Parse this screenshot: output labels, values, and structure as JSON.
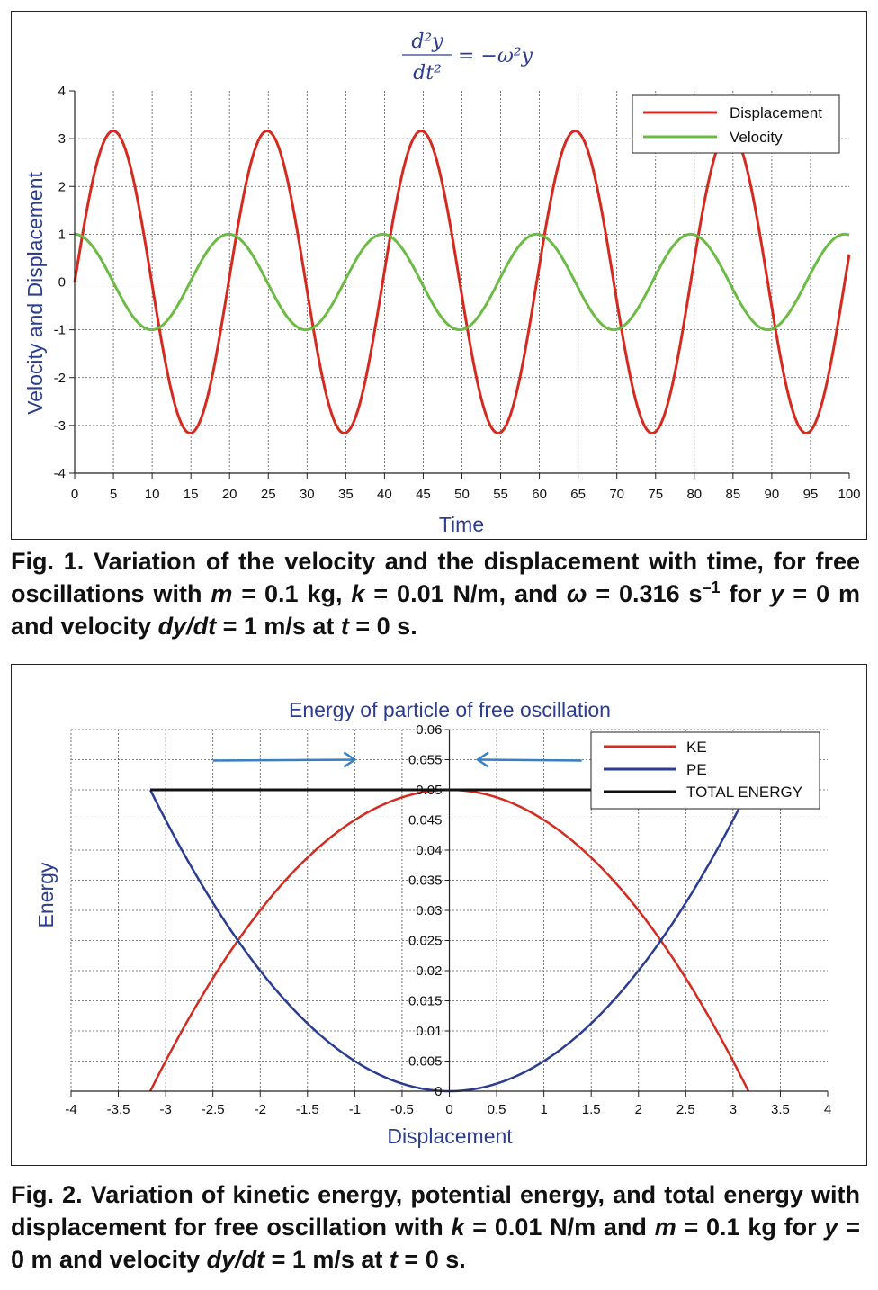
{
  "figure1": {
    "equation": {
      "numerator": "d²y",
      "denominator": "dt²",
      "rhs": "= −ω²y"
    },
    "caption": {
      "lead": "Fig. 1. Variation of the velocity and the displacement with time, for free oscillations with ",
      "m_sym": "m",
      "m_val": " = 0.1 kg, ",
      "k_sym": "k",
      "k_val": " = 0.01 N/m, and ",
      "w_sym": "ω",
      "w_val": " = 0.316 s",
      "w_exp": "–1",
      "for": " for ",
      "y_sym": "y",
      "y_val": " = 0 m and velocity ",
      "dydt": "dy/dt",
      "v_val": " = 1 m/s at ",
      "t_sym": "t",
      "t_val": " = 0 s."
    },
    "chart_data": {
      "type": "line",
      "title": "",
      "xlabel": "Time",
      "ylabel": "Velocity and Displacement",
      "xlim": [
        0,
        100
      ],
      "ylim": [
        -4,
        4
      ],
      "xticks": [
        0,
        5,
        10,
        15,
        20,
        25,
        30,
        35,
        40,
        45,
        50,
        55,
        60,
        65,
        70,
        75,
        80,
        85,
        90,
        95,
        100
      ],
      "yticks": [
        -4,
        -3,
        -2,
        -1,
        0,
        1,
        2,
        3,
        4
      ],
      "grid": true,
      "legend_position": "top-right",
      "omega": 0.316,
      "series": [
        {
          "name": "Displacement",
          "color": "#d42a1f",
          "amplitude": 3.162,
          "function": "sin"
        },
        {
          "name": "Velocity",
          "color": "#6cbb45",
          "amplitude": 1.0,
          "function": "cos"
        }
      ]
    }
  },
  "figure2": {
    "caption": {
      "lead": "Fig. 2. Variation of kinetic energy, potential energy, and total energy with displacement for free oscillation with ",
      "k_sym": "k",
      "k_val": " = 0.01 N/m and ",
      "m_sym": "m",
      "m_val": " = 0.1 kg for ",
      "y_sym": "y",
      "y_val": " = 0 m and velocity ",
      "dydt": "dy/dt",
      "v_val": " = 1 m/s at ",
      "t_sym": "t",
      "t_val": " = 0 s."
    },
    "chart_data": {
      "type": "line",
      "title": "Energy of particle of free oscillation",
      "xlabel": "Displacement",
      "ylabel": "Energy",
      "xlim": [
        -4,
        4
      ],
      "ylim": [
        0,
        0.06
      ],
      "xticks": [
        -4,
        -3.5,
        -3,
        -2.5,
        -2,
        -1.5,
        -1,
        -0.5,
        0,
        0.5,
        1,
        1.5,
        2,
        2.5,
        3,
        3.5,
        4
      ],
      "yticks": [
        0,
        0.005,
        0.01,
        0.015,
        0.02,
        0.025,
        0.03,
        0.035,
        0.04,
        0.045,
        0.05,
        0.055,
        0.06
      ],
      "grid": true,
      "legend_position": "top-right",
      "k": 0.01,
      "amplitude": 3.162,
      "total_energy": 0.05,
      "series": [
        {
          "name": "KE",
          "color": "#d42a1f"
        },
        {
          "name": "PE",
          "color": "#2b3d92"
        },
        {
          "name": "TOTAL ENERGY",
          "color": "#111111"
        }
      ],
      "annotations": [
        {
          "type": "arrow",
          "direction": "right",
          "from_x": -2.5,
          "to_x": -1.0,
          "y": 0.055,
          "color": "#3a7fc1"
        },
        {
          "type": "arrow",
          "direction": "left",
          "from_x": 1.4,
          "to_x": 0.3,
          "y": 0.055,
          "color": "#3a7fc1"
        }
      ]
    }
  }
}
